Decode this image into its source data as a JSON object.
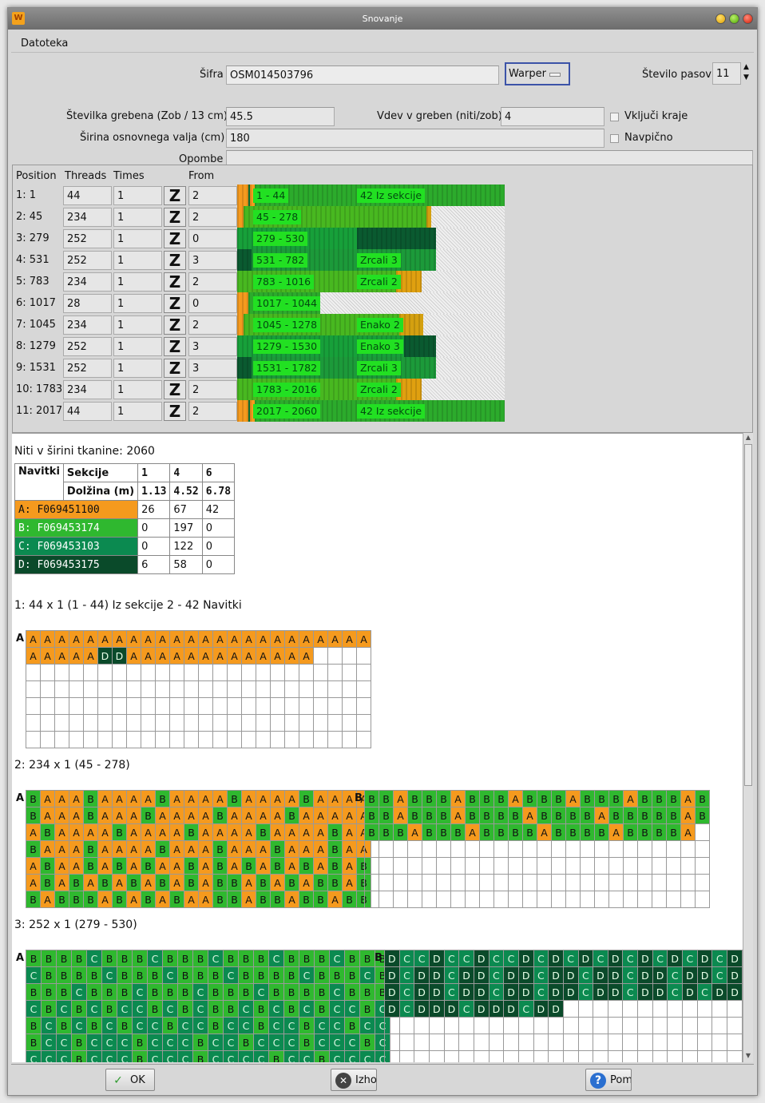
{
  "window": {
    "title": "Snovanje"
  },
  "menu": {
    "file": "Datoteka"
  },
  "form": {
    "code_label": "Šifra",
    "code_value": "OSM014503796",
    "machine": "Warper",
    "bands_label": "Število pasov",
    "bands_value": "11",
    "reed_label": "Številka grebena (Zob / 13 cm)",
    "reed_value": "45.5",
    "entry_label": "Vdev v greben (niti/zob)",
    "entry_value": "4",
    "include_edges_label": "Vključi kraje",
    "roll_label": "Širina osnovnega valja (cm)",
    "roll_value": "180",
    "vertical_label": "Navpično",
    "notes_label": "Opombe",
    "notes_value": ""
  },
  "sections_header": {
    "position": "Position",
    "threads": "Threads",
    "times": "Times",
    "from": "From"
  },
  "sections": [
    {
      "position": "1: 1",
      "threads": "44",
      "times": "1",
      "from": "2",
      "range": "1 - 44",
      "note": "42 Iz sekcije",
      "colors": [
        [
          "#f59a1e",
          14
        ],
        [
          "#0a7a38",
          2
        ],
        [
          "#f59a1e",
          6
        ],
        [
          "#2cab2c",
          314
        ]
      ]
    },
    {
      "position": "2: 45",
      "threads": "234",
      "times": "1",
      "from": "2",
      "range": "45 - 278",
      "note": "",
      "colors": [
        [
          "#f59a1e",
          8
        ],
        [
          "#48b820",
          230
        ],
        [
          "#d4a010",
          6
        ]
      ]
    },
    {
      "position": "3: 279",
      "threads": "252",
      "times": "1",
      "from": "0",
      "range": "279 - 530",
      "note": "",
      "colors": [
        [
          "#17a03a",
          150
        ],
        [
          "#0a5a30",
          100
        ]
      ]
    },
    {
      "position": "4: 531",
      "threads": "252",
      "times": "1",
      "from": "3",
      "range": "531 - 782",
      "note": "Zrcali 3",
      "colors": [
        [
          "#0a5a30",
          18
        ],
        [
          "#1c9a3a",
          232
        ]
      ]
    },
    {
      "position": "5: 783",
      "threads": "234",
      "times": "1",
      "from": "2",
      "range": "783 - 1016",
      "note": "Zrcali 2",
      "colors": [
        [
          "#48b820",
          200
        ],
        [
          "#e0a010",
          32
        ]
      ]
    },
    {
      "position": "6: 1017",
      "threads": "28",
      "times": "1",
      "from": "0",
      "range": "1017 - 1044",
      "note": "",
      "colors": [
        [
          "#f59a1e",
          14
        ],
        [
          "#2cab2c",
          90
        ]
      ]
    },
    {
      "position": "7: 1045",
      "threads": "234",
      "times": "1",
      "from": "2",
      "range": "1045 - 1278",
      "note": "Enako 2",
      "colors": [
        [
          "#f59a1e",
          8
        ],
        [
          "#48b820",
          196
        ],
        [
          "#d4a010",
          30
        ]
      ]
    },
    {
      "position": "8: 1279",
      "threads": "252",
      "times": "1",
      "from": "3",
      "range": "1279 - 1530",
      "note": "Enako 3",
      "colors": [
        [
          "#17a03a",
          210
        ],
        [
          "#0a5a30",
          40
        ]
      ]
    },
    {
      "position": "9: 1531",
      "threads": "252",
      "times": "1",
      "from": "3",
      "range": "1531 - 1782",
      "note": "Zrcali 3",
      "colors": [
        [
          "#0a5a30",
          18
        ],
        [
          "#1c9a3a",
          232
        ]
      ]
    },
    {
      "position": "10: 1783",
      "threads": "234",
      "times": "1",
      "from": "2",
      "range": "1783 - 2016",
      "note": "Zrcali 2",
      "colors": [
        [
          "#48b820",
          200
        ],
        [
          "#e0a010",
          32
        ]
      ]
    },
    {
      "position": "11: 2017",
      "threads": "44",
      "times": "1",
      "from": "2",
      "range": "2017 - 2060",
      "note": "42 Iz sekcije",
      "colors": [
        [
          "#f59a1e",
          14
        ],
        [
          "#0a7a38",
          2
        ],
        [
          "#f59a1e",
          6
        ],
        [
          "#2cab2c",
          314
        ]
      ]
    }
  ],
  "report": {
    "threads_total": "Niti v širini tkanine: 2060",
    "table": {
      "h_beams": "Navitki",
      "h_sections": "Sekcije",
      "h_length": "Dolžina (m)",
      "section_cols": [
        "1",
        "4",
        "6"
      ],
      "length_cols": [
        "1.13",
        "4.52",
        "6.78"
      ],
      "beams": [
        {
          "name": "A: F069451100",
          "color": "#f59a1e",
          "vals": [
            "26",
            "67",
            "42"
          ],
          "dark": false
        },
        {
          "name": "B: F069453174",
          "color": "#2fb82f",
          "vals": [
            "0",
            "197",
            "0"
          ],
          "dark": false
        },
        {
          "name": "C: F069453103",
          "color": "#0b8a50",
          "vals": [
            "0",
            "122",
            "0"
          ],
          "dark": false
        },
        {
          "name": "D: F069453175",
          "color": "#0a4a2a",
          "vals": [
            "6",
            "58",
            "0"
          ],
          "dark": true
        }
      ]
    },
    "sec1_title": "1: 44 x 1 (1 - 44) Iz sekcije 2 - 42 Navitki",
    "sec2_title": "2: 234 x 1 (45 - 278)",
    "sec3_title": "3: 252 x 1 (279 - 530)",
    "grids": [
      {
        "label": "A",
        "cols": 24,
        "rows": 7,
        "cells": "AAAAAAAAAAAAAAAAAAAAAAAAAAAAADDAAAAAAAAAAAAA"
      },
      {
        "label": "A",
        "cols": 24,
        "rows": 7,
        "cells": "BAAABAAAABAAAABAAAABAAAABAAABAAABAAAABAAAABAAAAAABAAAABAAAABAAAABAAAABAABAAABAAAABAAABAAABAAABAAABAABABABAABABABABABABABABABABABABABABBABABABBABBABBBABABABAABBABBABBABBABBABBBBABBBABBABBBABBBABBBBA"
      },
      {
        "label": "B",
        "cols": 24,
        "rows": 7,
        "cells": "BBABBBABBBABBBABBBABBBABBBABBBABBBBABBBBABBBBBABBBBABBBABBBBABBBBABBBBA"
      },
      {
        "label": "A",
        "cols": 24,
        "rows": 7,
        "cells": "BBBBCBBBCBBBCBBBCBBBCBBBCBBBBCBBBCBBBCBBBBCBBBCBBBBCBBBCBBBCBBBCBBBBCBBBCBCBCBCCBCBCBBCBCBCBCCBCBCBCBCBCCBCCBCCBCCBCCBCCBCCBCCCBCCCBCCBCCCBCCCBCCCCBCCCBCCCBCCCCBCCBCCCCBCCCCBDCCDCCDCCDCC"
      },
      {
        "label": "B",
        "cols": 24,
        "rows": 7,
        "cells": "DCCDCCDCCDCDCDCDCDCDCDCDDCDDCDDCDDCDDCDDCDDCDDCDDCDDCDDCDDCDDCDDCDDCDCDDDCDDDCDDDCDD"
      }
    ]
  },
  "footer": {
    "ok": "OK",
    "exit": "Izhod",
    "help": "Pomoč"
  }
}
